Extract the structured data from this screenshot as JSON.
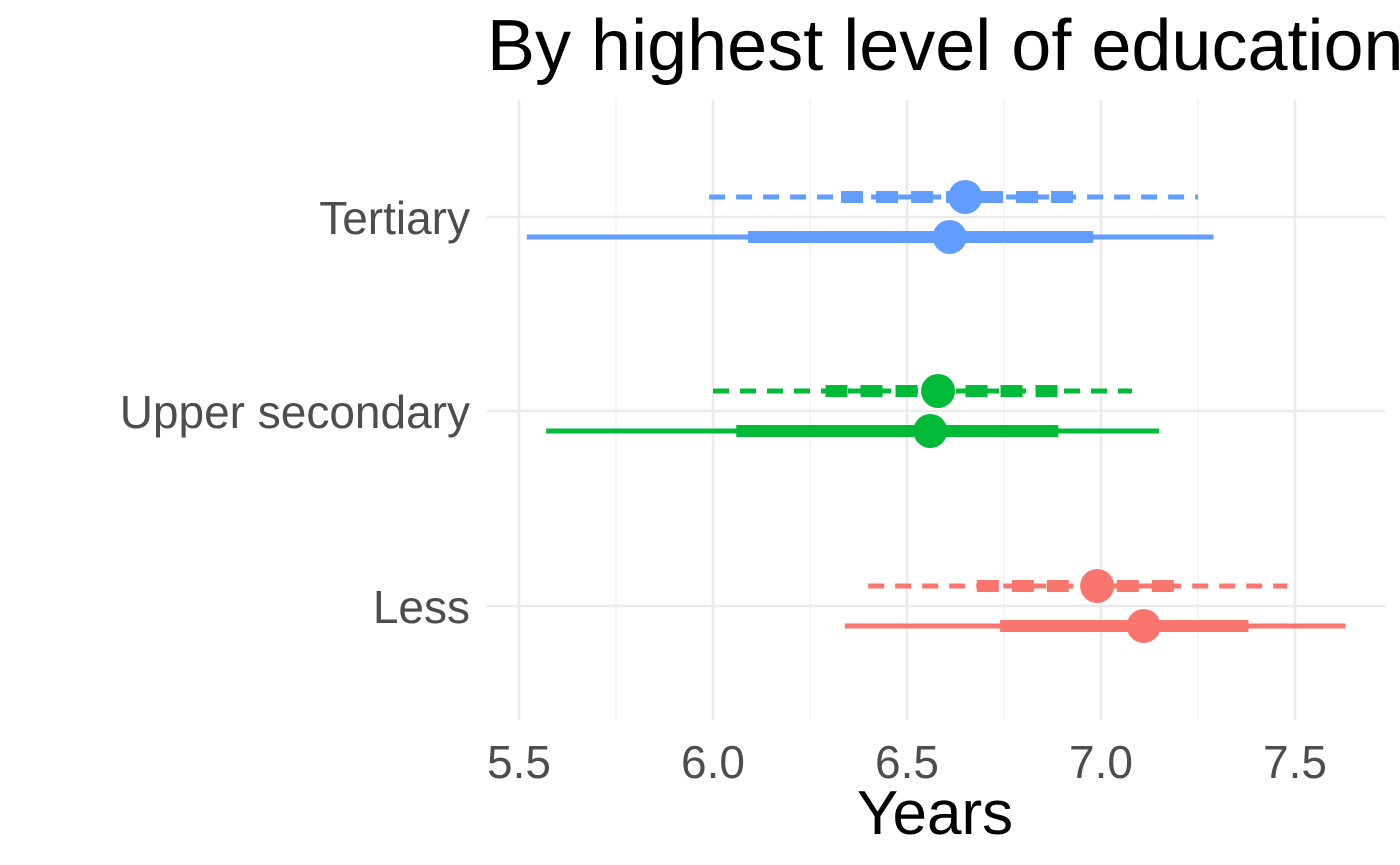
{
  "chart_data": {
    "type": "pointrange",
    "title": "By highest level of education",
    "xlabel": "Years",
    "ylabel": "",
    "xlim": [
      5.5,
      7.6
    ],
    "x_ticks": [
      "5.5",
      "6.0",
      "6.5",
      "7.0",
      "7.5"
    ],
    "x_tick_values": [
      5.5,
      6.0,
      6.5,
      7.0,
      7.5
    ],
    "grid": true,
    "legend": "none",
    "categories": [
      "Tertiary",
      "Upper secondary",
      "Less"
    ],
    "series": [
      {
        "line_style": "dashed",
        "points": [
          {
            "category": "Tertiary",
            "estimate": 6.65,
            "inner": [
              6.33,
              6.95
            ],
            "outer": [
              5.99,
              7.25
            ]
          },
          {
            "category": "Upper secondary",
            "estimate": 6.58,
            "inner": [
              6.29,
              6.9
            ],
            "outer": [
              6.0,
              7.08
            ]
          },
          {
            "category": "Less",
            "estimate": 6.99,
            "inner": [
              6.68,
              7.22
            ],
            "outer": [
              6.4,
              7.48
            ]
          }
        ]
      },
      {
        "line_style": "solid",
        "points": [
          {
            "category": "Tertiary",
            "estimate": 6.61,
            "inner": [
              6.09,
              6.98
            ],
            "outer": [
              5.52,
              7.29
            ]
          },
          {
            "category": "Upper secondary",
            "estimate": 6.56,
            "inner": [
              6.06,
              6.89
            ],
            "outer": [
              5.57,
              7.15
            ]
          },
          {
            "category": "Less",
            "estimate": 7.11,
            "inner": [
              6.74,
              7.38
            ],
            "outer": [
              6.34,
              7.63
            ]
          }
        ]
      }
    ],
    "colors": {
      "Tertiary": "#619CFF",
      "Upper secondary": "#00BA38",
      "Less": "#F8766D"
    }
  }
}
